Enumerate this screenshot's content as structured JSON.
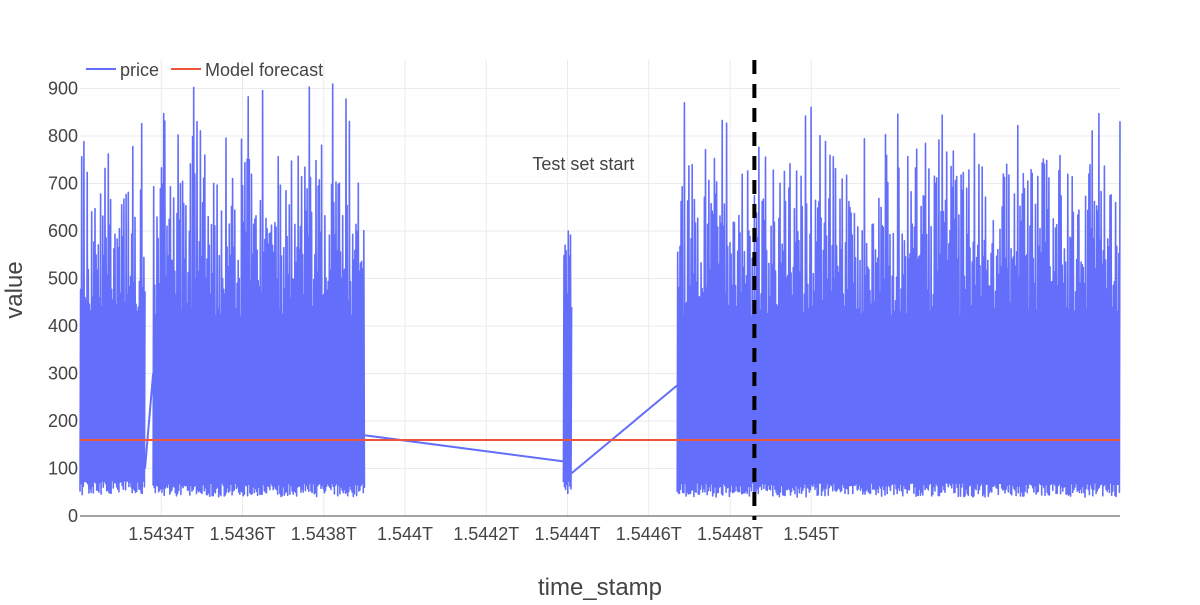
{
  "chart_data": {
    "type": "line",
    "title": "",
    "xlabel": "time_stamp",
    "ylabel": "value",
    "xlim": [
      1543200000000.0,
      1545760000000.0
    ],
    "ylim": [
      0,
      960
    ],
    "grid": true,
    "legend_position": "top-left",
    "x_ticks": [
      {
        "value": 1543400000000.0,
        "label": "1.5434T"
      },
      {
        "value": 1543600000000.0,
        "label": "1.5436T"
      },
      {
        "value": 1543800000000.0,
        "label": "1.5438T"
      },
      {
        "value": 1544000000000.0,
        "label": "1.544T"
      },
      {
        "value": 1544200000000.0,
        "label": "1.5442T"
      },
      {
        "value": 1544400000000.0,
        "label": "1.5444T"
      },
      {
        "value": 1544600000000.0,
        "label": "1.5446T"
      },
      {
        "value": 1544800000000.0,
        "label": "1.5448T"
      },
      {
        "value": 1545000000000.0,
        "label": "1.545T"
      }
    ],
    "y_ticks": [
      0,
      100,
      200,
      300,
      400,
      500,
      600,
      700,
      800,
      900
    ],
    "series": [
      {
        "name": "price",
        "color": "#636efa",
        "segments": [
          {
            "x_start": 1543200000000.0,
            "x_end": 1543360000000.0,
            "min": 45,
            "max": 870
          },
          {
            "x_start": 1543380000000.0,
            "x_end": 1543900000000.0,
            "min": 40,
            "max": 920
          },
          {
            "x_start": 1544390000000.0,
            "x_end": 1544410000000.0,
            "min": 45,
            "max": 600
          },
          {
            "x_start": 1544670000000.0,
            "x_end": 1545760000000.0,
            "min": 40,
            "max": 870
          }
        ],
        "connectors": [
          {
            "x": [
              1543360000000.0,
              1543380000000.0
            ],
            "y": [
              100,
              300
            ]
          },
          {
            "x": [
              1543900000000.0,
              1544390000000.0
            ],
            "y": [
              170,
              115
            ]
          },
          {
            "x": [
              1544410000000.0,
              1544670000000.0
            ],
            "y": [
              90,
              275
            ]
          }
        ]
      },
      {
        "name": "Model forecast",
        "color": "#ef553b",
        "x": [
          1543200000000.0,
          1545760000000.0
        ],
        "y": [
          160,
          160
        ]
      }
    ],
    "annotations": [
      {
        "text": "Test set start",
        "x": 1544860000000.0
      }
    ],
    "vline": {
      "x": 1544860000000.0,
      "style": "dashed",
      "color": "#000000"
    }
  }
}
